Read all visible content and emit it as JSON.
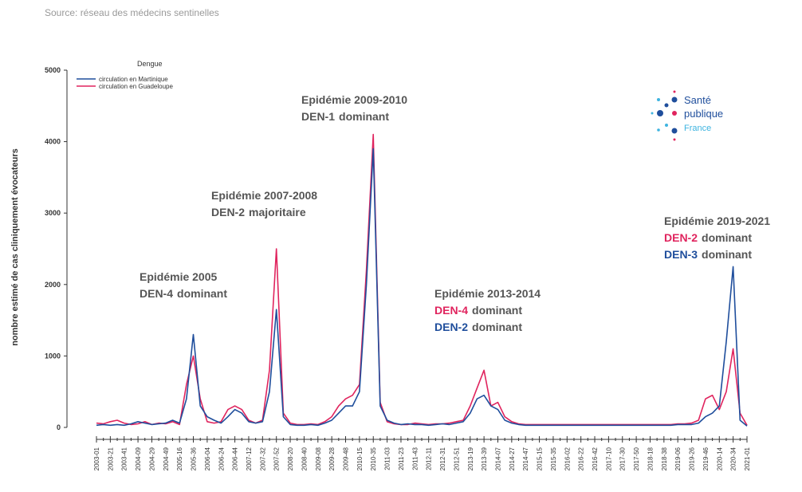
{
  "source": "Source: réseau des médecins sentinelles",
  "logo": [
    "Santé",
    "publique",
    "France"
  ],
  "chart_data": {
    "type": "line",
    "y_label": "nombre estimé de cas cliniquement évocateurs",
    "legend_title": "Dengue",
    "categories": [
      "2003-01",
      null,
      "2003-21",
      null,
      "2003-41",
      null,
      "2004-09",
      null,
      "2004-29",
      null,
      "2004-49",
      null,
      "2005-16",
      null,
      "2005-36",
      null,
      "2006-04",
      null,
      "2006-24",
      null,
      "2006-44",
      null,
      "2007-12",
      null,
      "2007-32",
      null,
      "2007-52",
      null,
      "2008-20",
      null,
      "2008-40",
      null,
      "2009-08",
      null,
      "2009-28",
      null,
      "2009-48",
      null,
      "2010-15",
      null,
      "2010-35",
      null,
      "2011-03",
      null,
      "2011-23",
      null,
      "2011-43",
      null,
      "2012-11",
      null,
      "2012-31",
      null,
      "2012-51",
      null,
      "2013-19",
      null,
      "2013-39",
      null,
      "2014-07",
      null,
      "2014-27",
      null,
      "2014-47",
      null,
      "2015-15",
      null,
      "2015-35",
      null,
      "2016-02",
      null,
      "2016-22",
      null,
      "2016-42",
      null,
      "2017-10",
      null,
      "2017-30",
      null,
      "2017-50",
      null,
      "2018-18",
      null,
      "2018-38",
      null,
      "2019-06",
      null,
      "2019-26",
      null,
      "2019-46",
      null,
      "2020-14",
      null,
      "2020-34",
      null,
      "2021-01"
    ],
    "series": [
      {
        "name": "circulation en Martinique",
        "color": "#1f4e9c",
        "values": [
          30,
          40,
          30,
          40,
          30,
          50,
          80,
          60,
          40,
          50,
          60,
          100,
          60,
          400,
          1300,
          300,
          150,
          100,
          60,
          150,
          250,
          200,
          80,
          60,
          80,
          500,
          1650,
          150,
          40,
          30,
          30,
          40,
          30,
          60,
          100,
          200,
          300,
          300,
          500,
          2000,
          3900,
          300,
          100,
          60,
          40,
          50,
          40,
          40,
          30,
          40,
          50,
          40,
          60,
          80,
          200,
          400,
          450,
          300,
          250,
          100,
          60,
          40,
          30,
          30,
          30,
          30,
          30,
          30,
          30,
          30,
          30,
          30,
          30,
          30,
          30,
          30,
          30,
          30,
          30,
          30,
          30,
          30,
          30,
          30,
          40,
          40,
          40,
          60,
          150,
          200,
          300,
          1200,
          2250,
          100,
          20
        ]
      },
      {
        "name": "circulation en Guadeloupe",
        "color": "#e0245e",
        "values": [
          60,
          50,
          80,
          100,
          60,
          40,
          50,
          80,
          40,
          60,
          50,
          80,
          40,
          600,
          1000,
          400,
          80,
          60,
          80,
          250,
          300,
          250,
          100,
          60,
          100,
          800,
          2500,
          200,
          60,
          40,
          40,
          50,
          40,
          80,
          150,
          300,
          400,
          450,
          600,
          2200,
          4100,
          350,
          80,
          50,
          40,
          40,
          60,
          50,
          40,
          50,
          50,
          60,
          80,
          100,
          300,
          550,
          800,
          300,
          350,
          150,
          80,
          50,
          40,
          40,
          40,
          40,
          40,
          40,
          40,
          40,
          40,
          40,
          40,
          40,
          40,
          40,
          40,
          40,
          40,
          40,
          40,
          40,
          40,
          40,
          50,
          50,
          60,
          100,
          400,
          450,
          250,
          500,
          1100,
          200,
          30
        ]
      }
    ],
    "ylim": [
      0,
      5000
    ],
    "yticks": [
      0,
      1000,
      2000,
      3000,
      4000,
      5000
    ],
    "annotations": [
      {
        "title": "Epidémie 2005",
        "lines": [
          {
            "strain": "DEN-4",
            "text": "dominant"
          }
        ]
      },
      {
        "title": "Epidémie 2007-2008",
        "lines": [
          {
            "strain": "DEN-2",
            "text": "majoritaire"
          }
        ]
      },
      {
        "title": "Epidémie 2009-2010",
        "lines": [
          {
            "strain": "DEN-1",
            "text": "dominant"
          }
        ]
      },
      {
        "title": "Epidémie 2013-2014",
        "lines": [
          {
            "strain": "DEN-4",
            "text": "dominant",
            "color": "#e0245e"
          },
          {
            "strain": "DEN-2",
            "text": "dominant",
            "color": "#1f4e9c"
          }
        ]
      },
      {
        "title": "Epidémie 2019-2021",
        "lines": [
          {
            "strain": "DEN-2",
            "text": "dominant",
            "color": "#e0245e"
          },
          {
            "strain": "DEN-3",
            "text": "dominant",
            "color": "#1f4e9c"
          }
        ]
      }
    ]
  }
}
